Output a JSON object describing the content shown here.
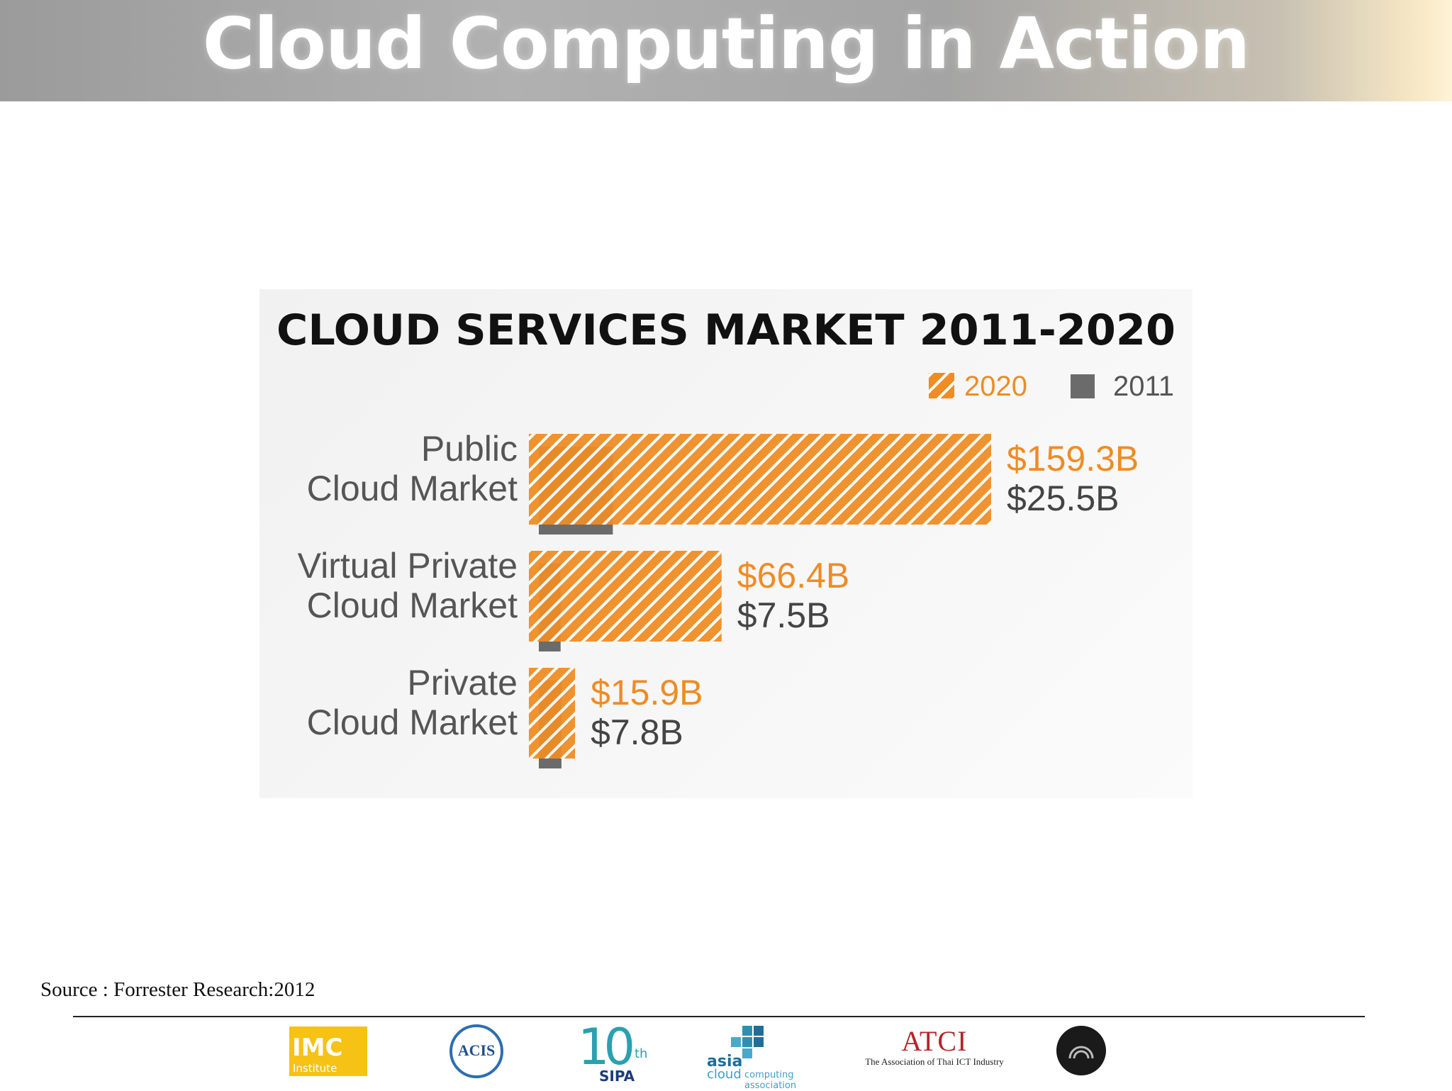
{
  "header": {
    "title": "Cloud Computing in Action"
  },
  "colors": {
    "series_2020": "#ef8c24",
    "series_2011": "#6b6b6b",
    "title": "#111111",
    "category_label": "#555555"
  },
  "chart_data": {
    "type": "bar",
    "orientation": "horizontal",
    "title": "CLOUD SERVICES MARKET 2011-2020",
    "legend": {
      "placement": "top-right",
      "entries": [
        "2020",
        "2011"
      ]
    },
    "categories": [
      "Public\nCloud Market",
      "Virtual Private\nCloud Market",
      "Private\nCloud Market"
    ],
    "series": [
      {
        "name": "2020",
        "values": [
          159.3,
          66.4,
          15.9
        ],
        "labels": [
          "$159.3B",
          "$66.4B",
          "$15.9B"
        ],
        "pattern": "hatched"
      },
      {
        "name": "2011",
        "values": [
          25.5,
          7.5,
          7.8
        ],
        "labels": [
          "$25.5B",
          "$7.5B",
          "$7.8B"
        ],
        "pattern": "solid"
      }
    ],
    "xlim": [
      0,
      159.3
    ],
    "grid": false
  },
  "source": "Source :  Forrester Research:2012",
  "footer": {
    "logos": [
      {
        "icon": "imc-institute-logo",
        "text": "IMC",
        "subtext": "Institute"
      },
      {
        "icon": "acis-logo",
        "text": "ACIS"
      },
      {
        "icon": "sipa-10th-logo",
        "text": "10",
        "suffix": "th",
        "subtext": "SIPA"
      },
      {
        "icon": "asia-cloud-computing-association-logo",
        "text": "asia",
        "subtext": "cloud",
        "tagline": "computing association"
      },
      {
        "icon": "atci-logo",
        "text": "ATCI",
        "subtext": "The Association of Thai ICT Industry"
      },
      {
        "icon": "cloud-council-logo"
      }
    ]
  }
}
